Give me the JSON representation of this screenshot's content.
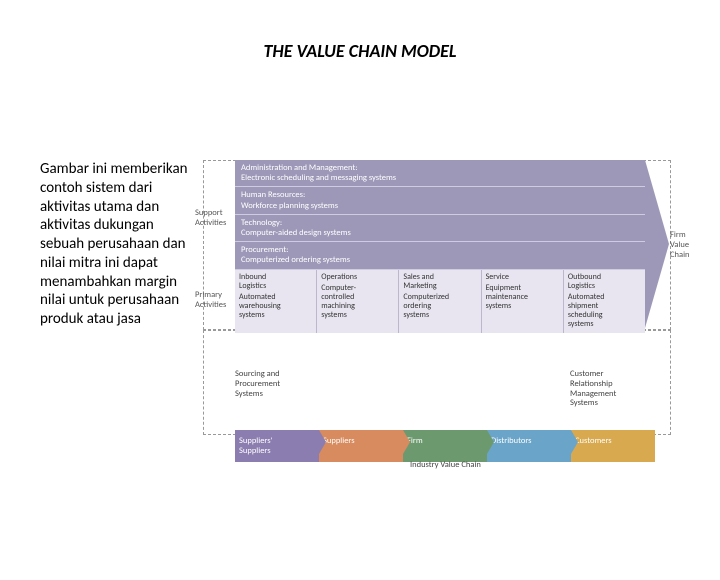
{
  "title": "THE VALUE CHAIN MODEL",
  "description": "Gambar ini memberikan contoh sistem dari aktivitas utama dan aktivitas dukungan sebuah perusahaan dan nilai mitra ini dapat menambahkan margin nilai untuk perusahaan produk atau jasa",
  "labels": {
    "support": "Support\nActivities",
    "primary": "Primary\nActivities",
    "firm_value": "Firm\nValue\nChain",
    "sourcing": "Sourcing and\nProcurement\nSystems",
    "crm": "Customer\nRelationship\nManagement\nSystems",
    "ivc": "Industry Value Chain"
  },
  "support_rows": [
    {
      "t": "Administration and Management:",
      "s": "Electronic scheduling and messaging systems"
    },
    {
      "t": "Human Resources:",
      "s": "Workforce planning systems"
    },
    {
      "t": "Technology:",
      "s": "Computer-aided design systems"
    },
    {
      "t": "Procurement:",
      "s": "Computerized ordering systems"
    }
  ],
  "primary_cells": [
    {
      "t": "Inbound\nLogistics",
      "s": "Automated\nwarehousing\nsystems"
    },
    {
      "t": "Operations",
      "s": "Computer-\ncontrolled\nmachining\nsystems"
    },
    {
      "t": "Sales and\nMarketing",
      "s": "Computerized\nordering\nsystems"
    },
    {
      "t": "Service",
      "s": "Equipment\nmaintenance\nsystems"
    },
    {
      "t": "Outbound\nLogistics",
      "s": "Automated\nshipment\nscheduling\nsystems"
    }
  ],
  "ivc": [
    {
      "label": "Suppliers'\nSuppliers",
      "bg": "#8c7db0"
    },
    {
      "label": "Suppliers",
      "bg": "#d88b5e"
    },
    {
      "label": "Firm",
      "bg": "#6c9a6e"
    },
    {
      "label": "Distributors",
      "bg": "#6aa5c9"
    },
    {
      "label": "Customers",
      "bg": "#d9a94f"
    }
  ],
  "colors": {
    "support_bg": "#9e98b8",
    "primary_bg": "#e8e5f0"
  }
}
